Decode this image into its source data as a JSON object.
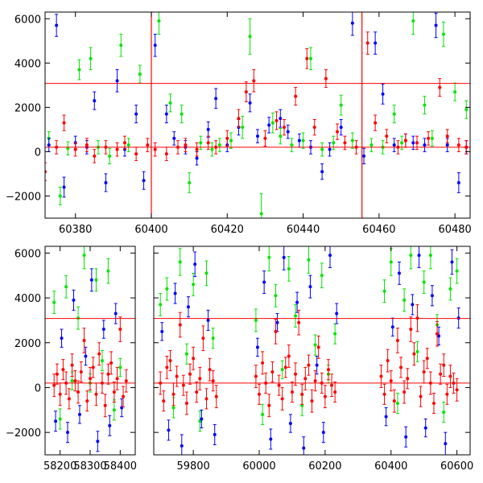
{
  "chart_data": [
    {
      "type": "scatter",
      "title": "",
      "xlabel": "",
      "ylabel": "",
      "xlim": [
        60372,
        60484
      ],
      "ylim": [
        -3000,
        6300
      ],
      "x_ticks": [
        60380,
        60400,
        60420,
        60440,
        60460,
        60480
      ],
      "y_ticks": [
        -2000,
        0,
        2000,
        4000,
        6000
      ],
      "reference_lines": {
        "horizontal": [
          3080,
          200
        ],
        "vertical": [
          60400,
          60455.5
        ]
      },
      "colors": {
        "green": "#00e600",
        "blue": "#0000ff",
        "red": "#ff0000"
      },
      "series": [
        {
          "color": "green",
          "x": [
            60373,
            60376,
            60378,
            60381,
            60384,
            60386,
            60389,
            60392,
            60394,
            60397,
            60402,
            60405,
            60408,
            60410,
            60413,
            60416,
            60418,
            60421,
            60424,
            60426,
            60429,
            60432,
            60434,
            60437,
            60440,
            60442,
            60445,
            60448,
            60450,
            60453,
            60458,
            60461,
            60464,
            60466,
            60469,
            60472,
            60474,
            60477,
            60480,
            60483
          ],
          "y": [
            600,
            -2000,
            150,
            3700,
            4200,
            200,
            -200,
            4800,
            300,
            3500,
            5900,
            2200,
            1700,
            -1400,
            400,
            100,
            300,
            500,
            1100,
            5200,
            -2800,
            1300,
            700,
            300,
            500,
            4200,
            100,
            400,
            2100,
            500,
            300,
            200,
            1700,
            400,
            5900,
            2100,
            600,
            5300,
            2700,
            1900
          ],
          "err": [
            300,
            400,
            300,
            450,
            500,
            300,
            350,
            500,
            300,
            400,
            600,
            400,
            400,
            450,
            300,
            300,
            300,
            350,
            500,
            800,
            900,
            450,
            350,
            300,
            350,
            500,
            300,
            300,
            450,
            350,
            300,
            300,
            400,
            300,
            600,
            400,
            350,
            550,
            400,
            400
          ]
        },
        {
          "color": "blue",
          "x": [
            60373,
            60375,
            60377,
            60380,
            60383,
            60385,
            60388,
            60391,
            60393,
            60396,
            60398,
            60401,
            60404,
            60406,
            60409,
            60412,
            60415,
            60417,
            60420,
            60423,
            60426,
            60428,
            60431,
            60434,
            60436,
            60439,
            60442,
            60445,
            60447,
            60450,
            60453,
            60456,
            60459,
            60461,
            60464,
            60467,
            60469,
            60472,
            60475,
            60478,
            60481,
            60483
          ],
          "y": [
            300,
            5700,
            -1600,
            400,
            200,
            2300,
            -1400,
            3200,
            100,
            1700,
            -1300,
            4800,
            1700,
            600,
            200,
            -300,
            1000,
            2400,
            300,
            1100,
            2200,
            700,
            1200,
            1500,
            900,
            500,
            200,
            -900,
            100,
            1100,
            5800,
            -200,
            4900,
            2600,
            300,
            500,
            400,
            300,
            5700,
            300,
            -1400,
            200
          ],
          "err": [
            300,
            500,
            450,
            300,
            300,
            400,
            400,
            500,
            300,
            400,
            400,
            500,
            400,
            300,
            300,
            300,
            350,
            450,
            300,
            350,
            400,
            300,
            350,
            400,
            300,
            300,
            300,
            350,
            300,
            350,
            550,
            350,
            500,
            450,
            300,
            300,
            300,
            300,
            550,
            300,
            450,
            300
          ]
        },
        {
          "color": "red",
          "x": [
            60372,
            60375,
            60377,
            60380,
            60383,
            60385,
            60388,
            60391,
            60393,
            60396,
            60399,
            60401,
            60404,
            60407,
            60409,
            60412,
            60415,
            60417,
            60420,
            60423,
            60425,
            60427,
            60430,
            60433,
            60435,
            60438,
            60441,
            60443,
            60446,
            60449,
            60451,
            60454,
            60457,
            60459,
            60462,
            60465,
            60467,
            60470,
            60473,
            60476,
            60478,
            60481,
            60483
          ],
          "y": [
            -900,
            200,
            1300,
            100,
            300,
            -200,
            200,
            100,
            400,
            -100,
            300,
            100,
            -100,
            200,
            300,
            100,
            400,
            200,
            600,
            1500,
            2700,
            3200,
            600,
            1400,
            1100,
            2500,
            4200,
            1100,
            3300,
            900,
            400,
            200,
            4900,
            1300,
            700,
            200,
            500,
            400,
            600,
            2900,
            700,
            300,
            200
          ],
          "err": [
            400,
            300,
            350,
            300,
            300,
            300,
            300,
            300,
            300,
            300,
            300,
            300,
            300,
            300,
            300,
            300,
            300,
            300,
            350,
            400,
            450,
            500,
            350,
            400,
            350,
            400,
            450,
            350,
            400,
            350,
            300,
            300,
            500,
            350,
            300,
            300,
            300,
            300,
            300,
            400,
            300,
            300,
            300
          ]
        }
      ]
    },
    {
      "type": "scatter",
      "title": "",
      "xlabel": "",
      "ylabel": "",
      "broken_axis": true,
      "segments": [
        {
          "xlim": [
            58150,
            58450
          ],
          "x_ticks": [
            58200,
            58300,
            58400
          ]
        },
        {
          "xlim": [
            59680,
            60640
          ],
          "x_ticks": [
            59800,
            60000,
            60200,
            60400,
            60600
          ]
        }
      ],
      "ylim": [
        -3000,
        6300
      ],
      "y_ticks": [
        -2000,
        0,
        2000,
        4000,
        6000
      ],
      "reference_lines": {
        "horizontal": [
          3080,
          200
        ]
      },
      "colors": {
        "green": "#00e600",
        "blue": "#0000ff",
        "red": "#ff0000"
      },
      "series": [
        {
          "color": "green",
          "x": [
            58180,
            58200,
            58220,
            58240,
            58260,
            58280,
            58300,
            58320,
            58340,
            58360,
            58380,
            58400,
            59700,
            59720,
            59740,
            59760,
            59780,
            59800,
            59820,
            59840,
            59860,
            59990,
            60010,
            60030,
            60050,
            60070,
            60090,
            60110,
            60130,
            60150,
            60170,
            60190,
            60210,
            60230,
            60380,
            60400,
            60420,
            60440,
            60460,
            60480,
            60500,
            60520,
            60540,
            60560,
            60580,
            60600
          ],
          "y": [
            3800,
            -1400,
            4500,
            300,
            3100,
            5900,
            200,
            4800,
            1200,
            5200,
            -1000,
            900,
            3700,
            4400,
            -900,
            5600,
            1500,
            4600,
            -1500,
            5100,
            2200,
            3000,
            -1200,
            5800,
            4100,
            800,
            5300,
            3200,
            -800,
            5700,
            1900,
            5000,
            600,
            2400,
            4300,
            5600,
            -700,
            3900,
            5900,
            1600,
            4700,
            5900,
            2800,
            -1100,
            4400,
            5200
          ],
          "err": [
            500,
            450,
            500,
            400,
            500,
            600,
            400,
            500,
            450,
            550,
            450,
            400,
            500,
            500,
            450,
            600,
            450,
            500,
            450,
            550,
            450,
            500,
            450,
            600,
            500,
            400,
            550,
            500,
            450,
            600,
            450,
            550,
            400,
            450,
            500,
            600,
            450,
            500,
            600,
            450,
            500,
            600,
            450,
            450,
            500,
            550
          ]
        },
        {
          "color": "blue",
          "x": [
            58185,
            58205,
            58225,
            58245,
            58265,
            58285,
            58305,
            58325,
            58345,
            58365,
            58385,
            58405,
            59705,
            59725,
            59745,
            59765,
            59785,
            59805,
            59825,
            59845,
            59865,
            59995,
            60015,
            60035,
            60055,
            60075,
            60095,
            60115,
            60135,
            60155,
            60175,
            60195,
            60215,
            60235,
            60385,
            60405,
            60425,
            60445,
            60465,
            60485,
            60505,
            60525,
            60545,
            60565,
            60585,
            60605
          ],
          "y": [
            -1500,
            2200,
            -2000,
            3900,
            -1200,
            1400,
            4800,
            -2400,
            2600,
            -1700,
            3300,
            -900,
            2500,
            -1900,
            4200,
            -2600,
            3600,
            5500,
            -1400,
            3000,
            -2100,
            1800,
            4700,
            -2300,
            2900,
            5800,
            -1600,
            3800,
            -2700,
            4500,
            1000,
            -2000,
            5900,
            3300,
            -1300,
            2700,
            5100,
            -2200,
            3700,
            5900,
            -1800,
            4100,
            2300,
            -2500,
            5600,
            3100
          ],
          "err": [
            450,
            400,
            450,
            450,
            400,
            400,
            500,
            450,
            400,
            450,
            450,
            400,
            400,
            450,
            450,
            500,
            450,
            550,
            400,
            450,
            450,
            400,
            500,
            450,
            400,
            550,
            400,
            450,
            500,
            500,
            400,
            450,
            550,
            450,
            400,
            400,
            500,
            450,
            450,
            550,
            400,
            450,
            400,
            500,
            550,
            450
          ]
        },
        {
          "color": "red",
          "x": [
            58180,
            58190,
            58200,
            58210,
            58220,
            58230,
            58240,
            58250,
            58260,
            58270,
            58280,
            58290,
            58300,
            58310,
            58320,
            58330,
            58340,
            58350,
            58360,
            58370,
            58380,
            58390,
            58400,
            58410,
            58420,
            59700,
            59710,
            59720,
            59730,
            59740,
            59750,
            59760,
            59770,
            59780,
            59790,
            59800,
            59810,
            59820,
            59830,
            59840,
            59850,
            59860,
            59870,
            59990,
            60000,
            60010,
            60020,
            60030,
            60040,
            60050,
            60060,
            60070,
            60080,
            60090,
            60100,
            60110,
            60120,
            60130,
            60140,
            60150,
            60160,
            60170,
            60180,
            60190,
            60200,
            60210,
            60220,
            60230,
            60370,
            60380,
            60390,
            60400,
            60410,
            60420,
            60430,
            60440,
            60450,
            60460,
            60470,
            60480,
            60490,
            60500,
            60510,
            60520,
            60530,
            60540,
            60550,
            60560,
            60570,
            60580,
            60590,
            60600
          ],
          "y": [
            100,
            600,
            -300,
            800,
            200,
            -500,
            1000,
            300,
            -200,
            700,
            2100,
            -600,
            400,
            900,
            -300,
            1500,
            200,
            -800,
            600,
            1100,
            -200,
            400,
            2600,
            -400,
            300,
            200,
            -600,
            900,
            1200,
            -300,
            500,
            2800,
            100,
            -700,
            600,
            1300,
            -200,
            400,
            2200,
            -500,
            800,
            300,
            -400,
            500,
            -300,
            1100,
            200,
            -800,
            700,
            2500,
            100,
            -500,
            900,
            1400,
            -200,
            600,
            2900,
            -300,
            400,
            1000,
            -600,
            300,
            1800,
            200,
            -400,
            800,
            100,
            -200,
            500,
            -300,
            1200,
            300,
            -600,
            2100,
            900,
            -200,
            400,
            2600,
            1500,
            3100,
            -400,
            700,
            1300,
            200,
            -700,
            2400,
            600,
            1000,
            -300,
            500,
            200,
            -100
          ],
          "err": [
            500,
            450,
            500,
            450,
            500,
            450,
            500,
            450,
            500,
            450,
            550,
            450,
            500,
            450,
            500,
            500,
            450,
            500,
            450,
            500,
            450,
            500,
            550,
            450,
            500,
            500,
            450,
            500,
            450,
            500,
            450,
            550,
            450,
            500,
            450,
            500,
            450,
            500,
            550,
            450,
            500,
            450,
            500,
            500,
            450,
            500,
            450,
            500,
            450,
            550,
            450,
            500,
            450,
            500,
            450,
            500,
            550,
            450,
            500,
            450,
            500,
            450,
            500,
            450,
            500,
            450,
            500,
            450,
            500,
            450,
            500,
            450,
            500,
            550,
            450,
            500,
            450,
            550,
            500,
            600,
            450,
            500,
            450,
            500,
            450,
            550,
            450,
            500,
            450,
            500,
            450,
            500
          ]
        }
      ]
    }
  ]
}
